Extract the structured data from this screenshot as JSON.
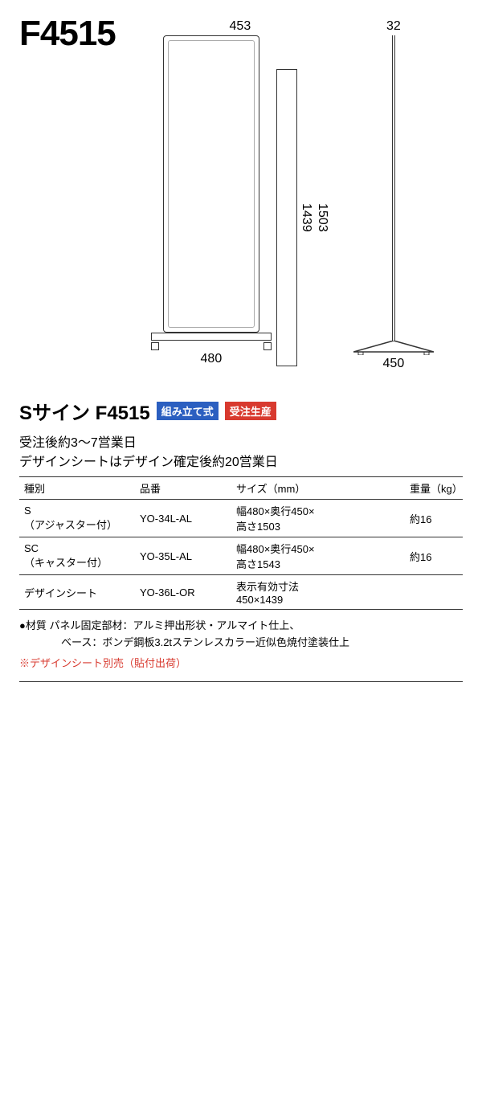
{
  "model_code": "F4515",
  "diagram": {
    "front": {
      "top_width": "453",
      "panel_height_inner": "1439",
      "panel_height_outer": "1503",
      "base_width": "480"
    },
    "side": {
      "pole_width": "32",
      "base_depth": "450"
    },
    "colors": {
      "stroke": "#333333",
      "light_stroke": "#aaaaaa",
      "background": "#ffffff"
    }
  },
  "product_title": "Sサイン F4515",
  "badges": {
    "assembly": {
      "label": "組み立て式",
      "bg": "#2b5fc0"
    },
    "made_to_order": {
      "label": "受注生産",
      "bg": "#d83a2f"
    }
  },
  "leadtime": {
    "line1": "受注後約3〜7営業日",
    "line2": "デザインシートはデザイン確定後約20営業日"
  },
  "table": {
    "headers": {
      "type": "種別",
      "code": "品番",
      "size": "サイズ（mm）",
      "weight": "重量（kg）"
    },
    "rows": [
      {
        "type": "S\n（アジャスター付）",
        "code": "YO-34L-AL",
        "size": "幅480×奥行450×\n高さ1503",
        "weight": "約16"
      },
      {
        "type": "SC\n（キャスター付）",
        "code": "YO-35L-AL",
        "size": "幅480×奥行450×\n高さ1543",
        "weight": "約16"
      },
      {
        "type": "デザインシート",
        "code": "YO-36L-OR",
        "size": "表示有効寸法\n450×1439",
        "weight": ""
      }
    ]
  },
  "notes": {
    "material_line1": "●材質 パネル固定部材：アルミ押出形状・アルマイト仕上、",
    "material_line2": "ベース：ボンデ鋼板3.2tステンレスカラー近似色焼付塗装仕上",
    "separate": "※デザインシート別売（貼付出荷）"
  }
}
